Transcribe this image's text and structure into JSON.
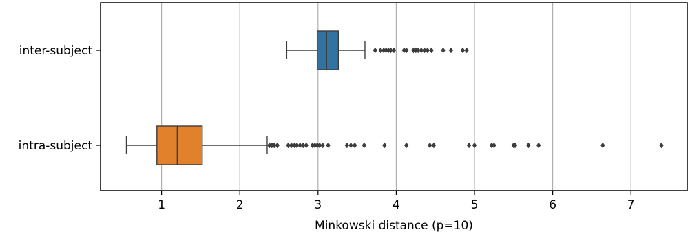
{
  "chart_data": {
    "type": "boxplot",
    "orientation": "horizontal",
    "title": "",
    "xlabel": "Minkowski distance (p=10)",
    "ylabel": "",
    "xlim": [
      0.22,
      7.72
    ],
    "xticks": [
      1,
      2,
      3,
      4,
      5,
      6,
      7
    ],
    "grid": "vertical",
    "legend": "none",
    "categories": [
      "inter-subject",
      "intra-subject"
    ],
    "series": [
      {
        "category": "inter-subject",
        "color": "#3274a1",
        "whisker_low": 2.6,
        "q1": 2.99,
        "median": 3.11,
        "q3": 3.26,
        "whisker_high": 3.6,
        "outliers": [
          3.73,
          3.8,
          3.84,
          3.87,
          3.9,
          3.93,
          3.97,
          4.1,
          4.13,
          4.22,
          4.25,
          4.28,
          4.32,
          4.36,
          4.4,
          4.45,
          4.6,
          4.7,
          4.85,
          4.9
        ]
      },
      {
        "category": "intra-subject",
        "color": "#e1812c",
        "whisker_low": 0.55,
        "q1": 0.94,
        "median": 1.2,
        "q3": 1.52,
        "whisker_high": 2.35,
        "outliers": [
          2.38,
          2.41,
          2.44,
          2.48,
          2.62,
          2.66,
          2.7,
          2.73,
          2.77,
          2.81,
          2.85,
          2.93,
          2.96,
          2.99,
          3.02,
          3.06,
          3.13,
          3.37,
          3.42,
          3.47,
          3.59,
          3.85,
          4.13,
          4.43,
          4.48,
          4.93,
          5.0,
          5.22,
          5.25,
          5.5,
          5.52,
          5.69,
          5.82,
          6.64,
          7.39
        ]
      }
    ]
  }
}
